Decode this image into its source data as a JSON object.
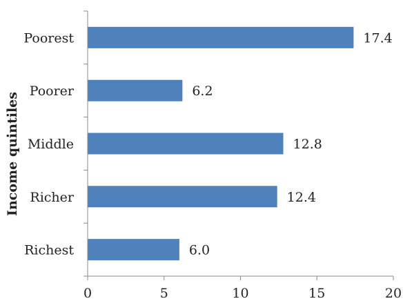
{
  "chart_data": {
    "type": "bar",
    "orientation": "horizontal",
    "categories": [
      "Poorest",
      "Poorer",
      "Middle",
      "Richer",
      "Richest"
    ],
    "values": [
      17.4,
      6.2,
      12.8,
      12.4,
      6.0
    ],
    "value_labels": [
      "17.4",
      "6.2",
      "12.8",
      "12.4",
      "6.0"
    ],
    "title": "",
    "xlabel": "",
    "ylabel": "Income quintiles",
    "xlim": [
      0,
      20
    ],
    "xticks": [
      "0",
      "5",
      "10",
      "15",
      "20"
    ],
    "grid": false,
    "legend": "none",
    "bar_color": "#4f81bd"
  }
}
